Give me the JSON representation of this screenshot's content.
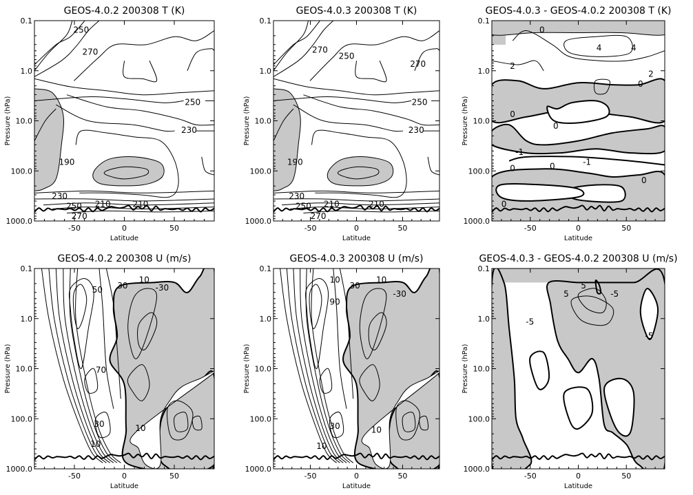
{
  "figure": {
    "panels": [
      {
        "title": "GEOS-4.0.2 200308 T (K)",
        "type": "contour",
        "xlabel": "Latitude",
        "ylabel": "Pressure (hPa)",
        "kind": "temperature",
        "contour_labels": [
          "270",
          "250",
          "250",
          "230",
          "190",
          "210",
          "210",
          "230",
          "250",
          "270"
        ]
      },
      {
        "title": "GEOS-4.0.3 200308 T (K)",
        "type": "contour",
        "xlabel": "Latitude",
        "ylabel": "Pressure (hPa)",
        "kind": "temperature",
        "contour_labels": [
          "270",
          "250",
          "270",
          "250",
          "230",
          "190",
          "210",
          "210",
          "230",
          "250",
          "270"
        ]
      },
      {
        "title": "GEOS-4.0.3 - GEOS-4.0.2 200308 T (K)",
        "type": "contour",
        "xlabel": "Latitude",
        "ylabel": "Pressure (hPa)",
        "kind": "tdiff",
        "contour_labels": [
          "0",
          "2",
          "4",
          "4",
          "2",
          "0",
          "0",
          "0",
          "-1",
          "0",
          "0",
          "-1",
          "0",
          "0"
        ]
      },
      {
        "title": "GEOS-4.0.2 200308 U (m/s)",
        "type": "contour",
        "xlabel": "Latitude",
        "ylabel": "Pressure (hPa)",
        "kind": "wind",
        "contour_labels": [
          "50",
          "30",
          "10",
          "-30",
          "70",
          "30",
          "10",
          "10"
        ]
      },
      {
        "title": "GEOS-4.0.3 200308 U (m/s)",
        "type": "contour",
        "xlabel": "Latitude",
        "ylabel": "Pressure (hPa)",
        "kind": "wind",
        "contour_labels": [
          "10",
          "30",
          "90",
          "10",
          "-30",
          "30",
          "10",
          "10"
        ]
      },
      {
        "title": "GEOS-4.0.3 - GEOS-4.0.2 200308 U (m/s)",
        "type": "contour",
        "xlabel": "Latitude",
        "ylabel": "Pressure (hPa)",
        "kind": "udiff",
        "contour_labels": [
          "-5",
          "5",
          "5",
          "-5",
          "-5"
        ]
      }
    ],
    "x_ticks": [
      "-50",
      "0",
      "50"
    ],
    "x_tick_values": [
      -50,
      0,
      50
    ],
    "xlim": [
      -90,
      90
    ],
    "y_ticks": [
      "0.1",
      "1.0",
      "10.0",
      "100.0",
      "1000.0"
    ],
    "y_tick_values": [
      0.1,
      1,
      10,
      100,
      1000
    ],
    "ylim": [
      1000,
      0.1
    ],
    "y_scale": "log",
    "colors": {
      "shade": "#c8c8c8",
      "line": "#000000",
      "background": "#ffffff"
    }
  },
  "chart_data": [
    {
      "type": "contour",
      "title": "GEOS-4.0.2 200308 T (K)",
      "xlabel": "Latitude",
      "ylabel": "Pressure (hPa)",
      "xlim": [
        -90,
        90
      ],
      "ylim": [
        1000,
        0.1
      ],
      "y_scale": "log",
      "contour_levels": [
        190,
        210,
        230,
        250,
        270
      ],
      "shaded_below": 210
    },
    {
      "type": "contour",
      "title": "GEOS-4.0.3 200308 T (K)",
      "xlabel": "Latitude",
      "ylabel": "Pressure (hPa)",
      "xlim": [
        -90,
        90
      ],
      "ylim": [
        1000,
        0.1
      ],
      "y_scale": "log",
      "contour_levels": [
        190,
        210,
        230,
        250,
        270
      ],
      "shaded_below": 210
    },
    {
      "type": "contour",
      "title": "GEOS-4.0.3 - GEOS-4.0.2 200308 T (K)",
      "xlabel": "Latitude",
      "ylabel": "Pressure (hPa)",
      "xlim": [
        -90,
        90
      ],
      "ylim": [
        1000,
        0.1
      ],
      "y_scale": "log",
      "contour_levels": [
        -1,
        0,
        2,
        4
      ],
      "shaded_below": 0
    },
    {
      "type": "contour",
      "title": "GEOS-4.0.2 200308 U (m/s)",
      "xlabel": "Latitude",
      "ylabel": "Pressure (hPa)",
      "xlim": [
        -90,
        90
      ],
      "ylim": [
        1000,
        0.1
      ],
      "y_scale": "log",
      "contour_levels": [
        -30,
        -10,
        0,
        10,
        30,
        50,
        70
      ],
      "shaded_below": 0
    },
    {
      "type": "contour",
      "title": "GEOS-4.0.3 200308 U (m/s)",
      "xlabel": "Latitude",
      "ylabel": "Pressure (hPa)",
      "xlim": [
        -90,
        90
      ],
      "ylim": [
        1000,
        0.1
      ],
      "y_scale": "log",
      "contour_levels": [
        -30,
        -10,
        0,
        10,
        30,
        50,
        70,
        90
      ],
      "shaded_below": 0
    },
    {
      "type": "contour",
      "title": "GEOS-4.0.3 - GEOS-4.0.2 200308 U (m/s)",
      "xlabel": "Latitude",
      "ylabel": "Pressure (hPa)",
      "xlim": [
        -90,
        90
      ],
      "ylim": [
        1000,
        0.1
      ],
      "y_scale": "log",
      "contour_levels": [
        -5,
        0,
        5
      ],
      "shaded_below": 0
    }
  ]
}
